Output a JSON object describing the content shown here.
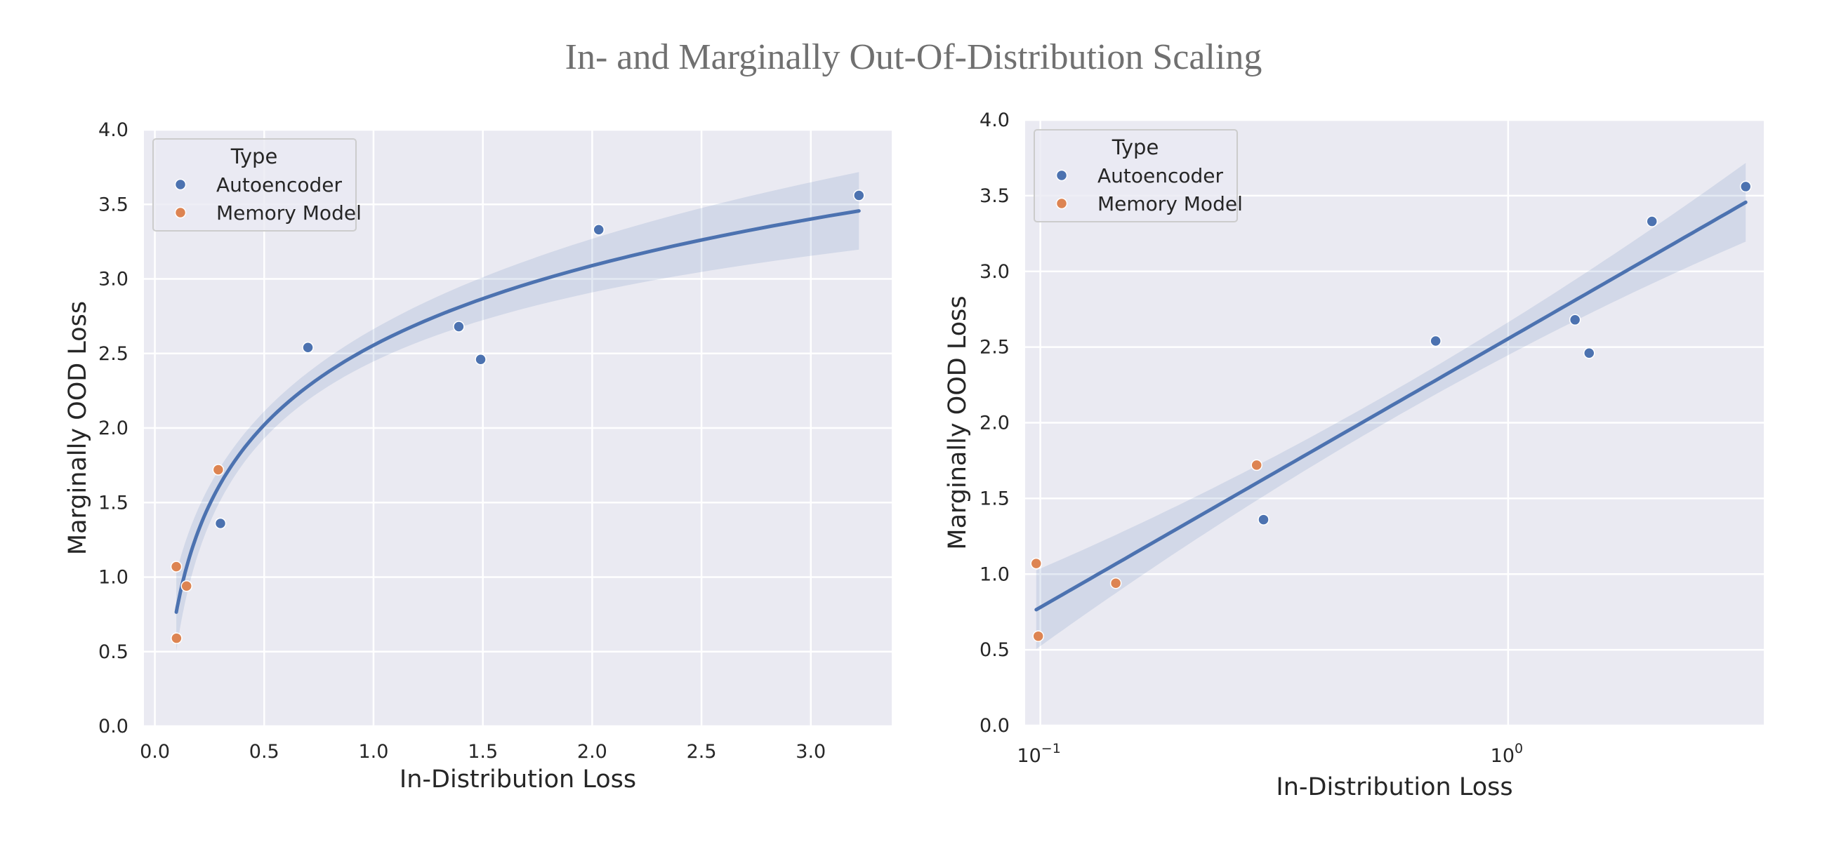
{
  "title": "In- and Marginally Out-Of-Distribution Scaling",
  "colors": {
    "autoencoder": "#4c72b0",
    "memory_model": "#dd8452",
    "fit_line": "#4c72b0",
    "band": "#4c72b0",
    "axes_bg": "#eaeaf2",
    "grid": "#ffffff"
  },
  "chart_data": [
    {
      "type": "scatter",
      "xscale": "linear",
      "xlabel": "In-Distribution Loss",
      "ylabel": "Marginally OOD Loss",
      "xlim": [
        -0.05,
        3.37
      ],
      "ylim": [
        0.0,
        4.0
      ],
      "xticks": [
        0.0,
        0.5,
        1.0,
        1.5,
        2.0,
        2.5,
        3.0
      ],
      "xtick_labels": [
        "0.0",
        "0.5",
        "1.0",
        "1.5",
        "2.0",
        "2.5",
        "3.0"
      ],
      "yticks": [
        0.0,
        0.5,
        1.0,
        1.5,
        2.0,
        2.5,
        3.0,
        3.5,
        4.0
      ],
      "ytick_labels": [
        "0.0",
        "0.5",
        "1.0",
        "1.5",
        "2.0",
        "2.5",
        "3.0",
        "3.5",
        "4.0"
      ],
      "grid": true,
      "legend": {
        "title": "Type",
        "placement": "upper-left",
        "entries": [
          "Autoencoder",
          "Memory Model"
        ]
      },
      "series": [
        {
          "name": "Autoencoder",
          "points": [
            {
              "x": 0.3,
              "y": 1.36
            },
            {
              "x": 0.7,
              "y": 2.54
            },
            {
              "x": 1.39,
              "y": 2.68
            },
            {
              "x": 1.49,
              "y": 2.46
            },
            {
              "x": 2.03,
              "y": 3.33
            },
            {
              "x": 3.22,
              "y": 3.56
            }
          ]
        },
        {
          "name": "Memory Model",
          "points": [
            {
              "x": 0.098,
              "y": 1.07
            },
            {
              "x": 0.099,
              "y": 0.59
            },
            {
              "x": 0.145,
              "y": 0.94
            },
            {
              "x": 0.29,
              "y": 1.72
            }
          ]
        }
      ],
      "fit": {
        "model": "y = a + b * ln(x)",
        "a": 2.555,
        "b": 0.7706,
        "x_range": [
          0.098,
          3.22
        ]
      }
    },
    {
      "type": "scatter",
      "xscale": "log",
      "xlabel": "In-Distribution Loss",
      "ylabel": "Marginally OOD Loss",
      "xlim": [
        0.0928,
        3.52
      ],
      "ylim": [
        0.0,
        4.0
      ],
      "xticks": [
        0.1,
        1.0
      ],
      "xtick_labels": [
        {
          "base": "10",
          "exponent": "−1"
        },
        {
          "base": "10",
          "exponent": "0"
        }
      ],
      "yticks": [
        0.0,
        0.5,
        1.0,
        1.5,
        2.0,
        2.5,
        3.0,
        3.5,
        4.0
      ],
      "ytick_labels": [
        "0.0",
        "0.5",
        "1.0",
        "1.5",
        "2.0",
        "2.5",
        "3.0",
        "3.5",
        "4.0"
      ],
      "grid": true,
      "legend": {
        "title": "Type",
        "placement": "upper-left",
        "entries": [
          "Autoencoder",
          "Memory Model"
        ]
      },
      "series": [
        {
          "name": "Autoencoder",
          "points": [
            {
              "x": 0.3,
              "y": 1.36
            },
            {
              "x": 0.7,
              "y": 2.54
            },
            {
              "x": 1.39,
              "y": 2.68
            },
            {
              "x": 1.49,
              "y": 2.46
            },
            {
              "x": 2.03,
              "y": 3.33
            },
            {
              "x": 3.22,
              "y": 3.56
            }
          ]
        },
        {
          "name": "Memory Model",
          "points": [
            {
              "x": 0.098,
              "y": 1.07
            },
            {
              "x": 0.099,
              "y": 0.59
            },
            {
              "x": 0.145,
              "y": 0.94
            },
            {
              "x": 0.29,
              "y": 1.72
            }
          ]
        }
      ],
      "fit": {
        "model": "y = a + b * ln(x)",
        "a": 2.555,
        "b": 0.7706,
        "x_range": [
          0.098,
          3.22
        ]
      }
    }
  ]
}
